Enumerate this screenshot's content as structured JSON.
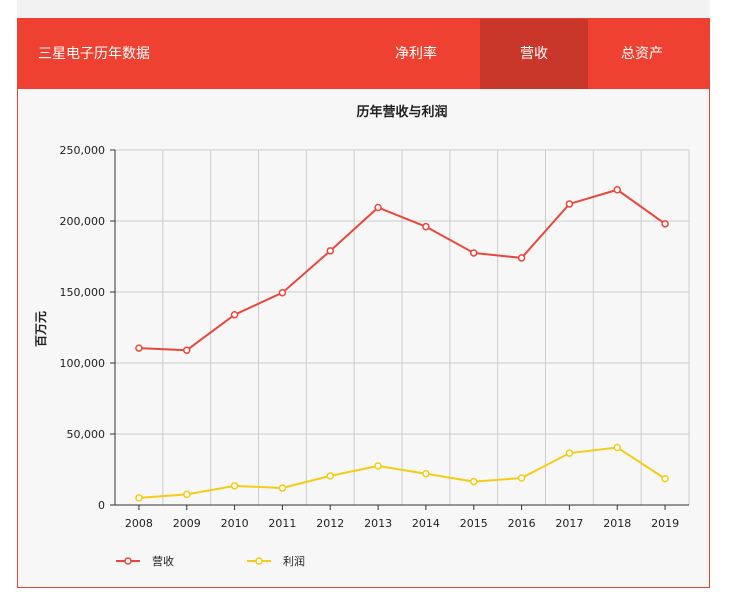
{
  "header": {
    "brand": "三星电子历年数据",
    "tabs": [
      {
        "label": "净利率",
        "active": false
      },
      {
        "label": "营收",
        "active": true
      },
      {
        "label": "总资产",
        "active": false
      }
    ]
  },
  "colors": {
    "header_bg": "#ee4131",
    "tab_active_bg": "#c9372b",
    "revenue": "#e8473a",
    "profit": "#f5cc14"
  },
  "chart_data": {
    "type": "line",
    "title": "历年营收与利润",
    "ylabel": "百万元",
    "xlabel": "",
    "categories": [
      "2008",
      "2009",
      "2010",
      "2011",
      "2012",
      "2013",
      "2014",
      "2015",
      "2016",
      "2017",
      "2018",
      "2019"
    ],
    "series": [
      {
        "name": "营收",
        "values": [
          110500,
          109000,
          134000,
          149500,
          179000,
          209500,
          196000,
          177500,
          174000,
          212000,
          222000,
          198000
        ]
      },
      {
        "name": "利润",
        "values": [
          5000,
          7500,
          13500,
          12000,
          20500,
          27500,
          22000,
          16500,
          19000,
          36500,
          40500,
          18500
        ]
      }
    ],
    "ylim": [
      0,
      250000
    ],
    "yticks": [
      0,
      50000,
      100000,
      150000,
      200000,
      250000
    ],
    "ytick_labels": [
      "0",
      "50,000",
      "100,000",
      "150,000",
      "200,000",
      "250,000"
    ],
    "grid": true,
    "legend_position": "bottom-left"
  }
}
